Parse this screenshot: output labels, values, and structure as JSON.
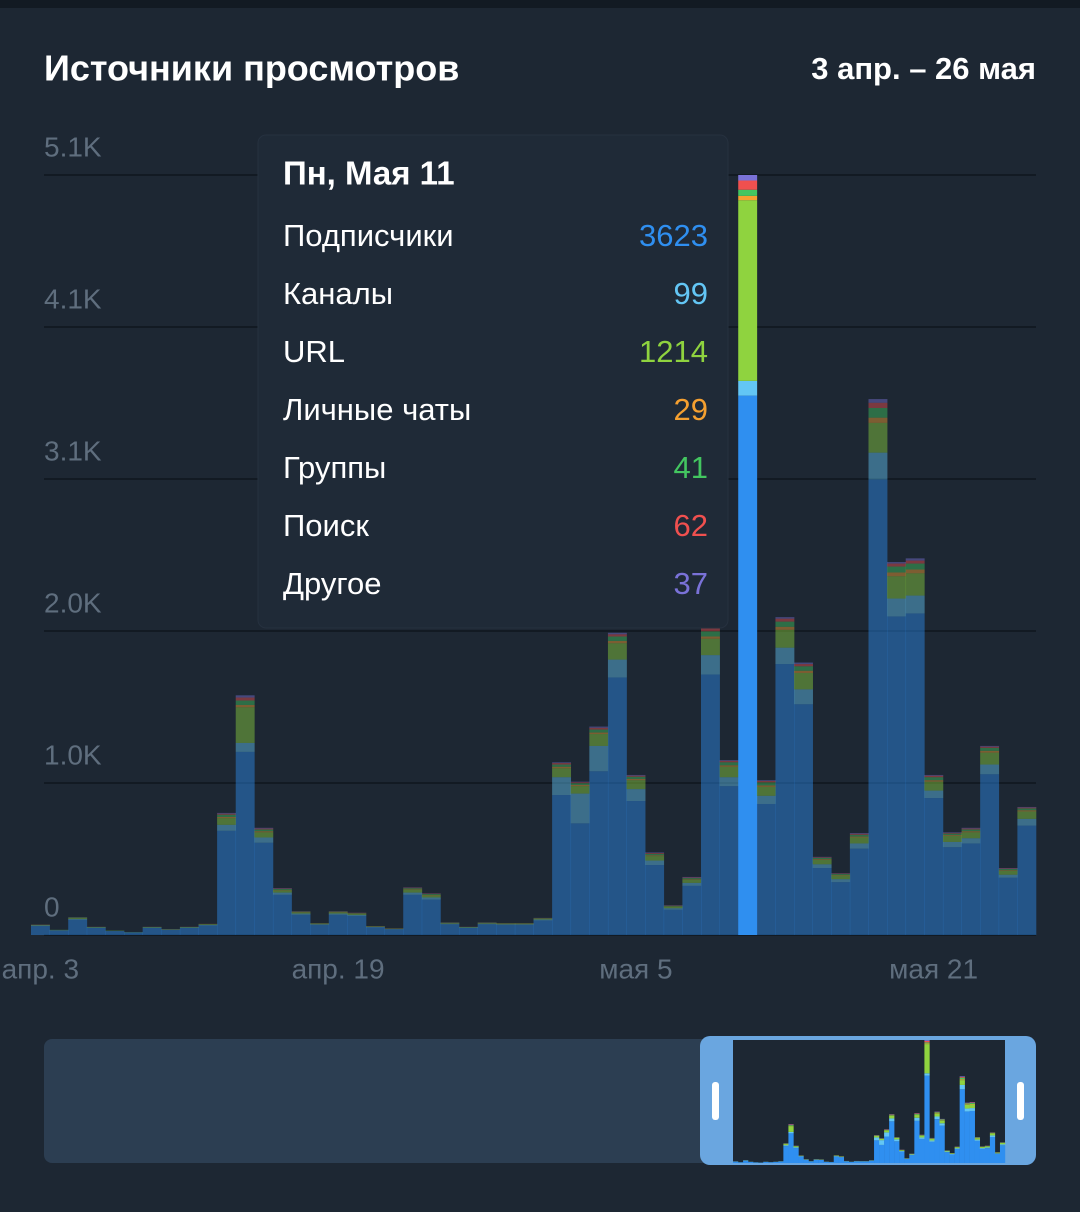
{
  "chart_data": {
    "type": "stacked_bar",
    "title": "Источники просмотров",
    "subtitle": "3 апр. – 26 мая",
    "categories": [
      "апр. 3",
      null,
      null,
      null,
      null,
      null,
      null,
      null,
      null,
      null,
      null,
      null,
      null,
      null,
      null,
      null,
      "апр. 19",
      null,
      null,
      null,
      null,
      null,
      null,
      null,
      null,
      null,
      null,
      null,
      null,
      null,
      null,
      null,
      "мая 5",
      null,
      null,
      null,
      null,
      null,
      null,
      null,
      null,
      null,
      null,
      null,
      null,
      null,
      null,
      null,
      "мая 21",
      null,
      null,
      null,
      null,
      null
    ],
    "selected": 38,
    "tooltip_title": "Пн, Мая 11",
    "ylim": [
      0,
      5105
    ],
    "yticks": [
      0,
      {
        "value": 1021,
        "label": "1.0K"
      },
      {
        "value": 2042,
        "label": "2.0K"
      },
      {
        "value": 3063,
        "label": "3.1K"
      },
      {
        "value": 4084,
        "label": "4.1K"
      },
      {
        "value": 5105,
        "label": "5.1K"
      }
    ],
    "grid": true,
    "series": [
      {
        "name": "Подписчики",
        "color": "#2f8ff0",
        "values": [
          60,
          30,
          102,
          47,
          26,
          17,
          47,
          34,
          47,
          64,
          700,
          1230,
          620,
          270,
          136,
          68,
          136,
          128,
          51,
          38,
          270,
          238,
          72,
          47,
          72,
          68,
          68,
          98,
          940,
          750,
          1100,
          1730,
          900,
          470,
          170,
          330,
          1750,
          1000,
          3623,
          880,
          1820,
          1550,
          450,
          355,
          580,
          3060,
          2140,
          2160,
          920,
          590,
          615,
          1080,
          385,
          735
        ]
      },
      {
        "name": "Каналы",
        "color": "#63c6f5",
        "values": [
          4,
          2,
          6,
          3,
          1,
          1,
          3,
          2,
          3,
          4,
          40,
          60,
          35,
          15,
          8,
          4,
          8,
          7,
          3,
          2,
          15,
          14,
          4,
          3,
          4,
          4,
          4,
          6,
          120,
          200,
          170,
          120,
          80,
          30,
          10,
          20,
          130,
          60,
          99,
          55,
          110,
          100,
          25,
          20,
          35,
          180,
          120,
          120,
          50,
          35,
          35,
          65,
          20,
          45
        ]
      },
      {
        "name": "URL",
        "color": "#8fd33f",
        "values": [
          3,
          2,
          6,
          3,
          2,
          1,
          3,
          2,
          3,
          4,
          45,
          240,
          35,
          15,
          8,
          4,
          8,
          7,
          3,
          2,
          20,
          14,
          4,
          3,
          4,
          4,
          4,
          6,
          60,
          50,
          80,
          110,
          60,
          30,
          10,
          20,
          110,
          70,
          1214,
          60,
          120,
          110,
          30,
          25,
          40,
          200,
          150,
          150,
          60,
          40,
          40,
          80,
          25,
          50
        ]
      },
      {
        "name": "Личные чаты",
        "color": "#f5a030",
        "values": [
          1,
          0,
          1,
          0,
          0,
          0,
          0,
          0,
          0,
          1,
          8,
          15,
          7,
          3,
          2,
          1,
          2,
          2,
          1,
          1,
          3,
          3,
          1,
          0,
          1,
          1,
          1,
          1,
          10,
          8,
          10,
          15,
          8,
          5,
          2,
          4,
          15,
          10,
          29,
          10,
          20,
          15,
          5,
          4,
          6,
          35,
          25,
          25,
          10,
          6,
          7,
          12,
          5,
          8
        ]
      },
      {
        "name": "Группы",
        "color": "#43c660",
        "values": [
          1,
          1,
          3,
          1,
          1,
          1,
          1,
          1,
          1,
          1,
          15,
          30,
          12,
          6,
          3,
          2,
          3,
          3,
          1,
          1,
          6,
          6,
          2,
          1,
          2,
          2,
          2,
          2,
          15,
          12,
          20,
          30,
          15,
          10,
          4,
          8,
          35,
          20,
          41,
          20,
          35,
          30,
          8,
          6,
          12,
          65,
          40,
          40,
          20,
          10,
          12,
          20,
          8,
          12
        ]
      },
      {
        "name": "Поиск",
        "color": "#f0504f",
        "values": [
          1,
          0,
          1,
          1,
          0,
          0,
          1,
          1,
          1,
          1,
          7,
          20,
          6,
          3,
          2,
          1,
          2,
          2,
          1,
          1,
          4,
          3,
          1,
          1,
          1,
          1,
          1,
          1,
          10,
          6,
          12,
          15,
          7,
          6,
          2,
          4,
          20,
          10,
          62,
          10,
          20,
          15,
          4,
          3,
          7,
          35,
          20,
          20,
          10,
          5,
          6,
          8,
          4,
          6
        ]
      },
      {
        "name": "Другое",
        "color": "#7a72d8",
        "values": [
          0,
          0,
          1,
          0,
          0,
          0,
          0,
          0,
          0,
          0,
          5,
          15,
          5,
          3,
          1,
          0,
          1,
          1,
          0,
          0,
          2,
          2,
          1,
          0,
          1,
          0,
          0,
          1,
          5,
          4,
          8,
          10,
          5,
          4,
          2,
          4,
          10,
          5,
          37,
          5,
          10,
          10,
          3,
          2,
          5,
          25,
          10,
          15,
          5,
          4,
          5,
          5,
          3,
          4
        ]
      }
    ]
  }
}
